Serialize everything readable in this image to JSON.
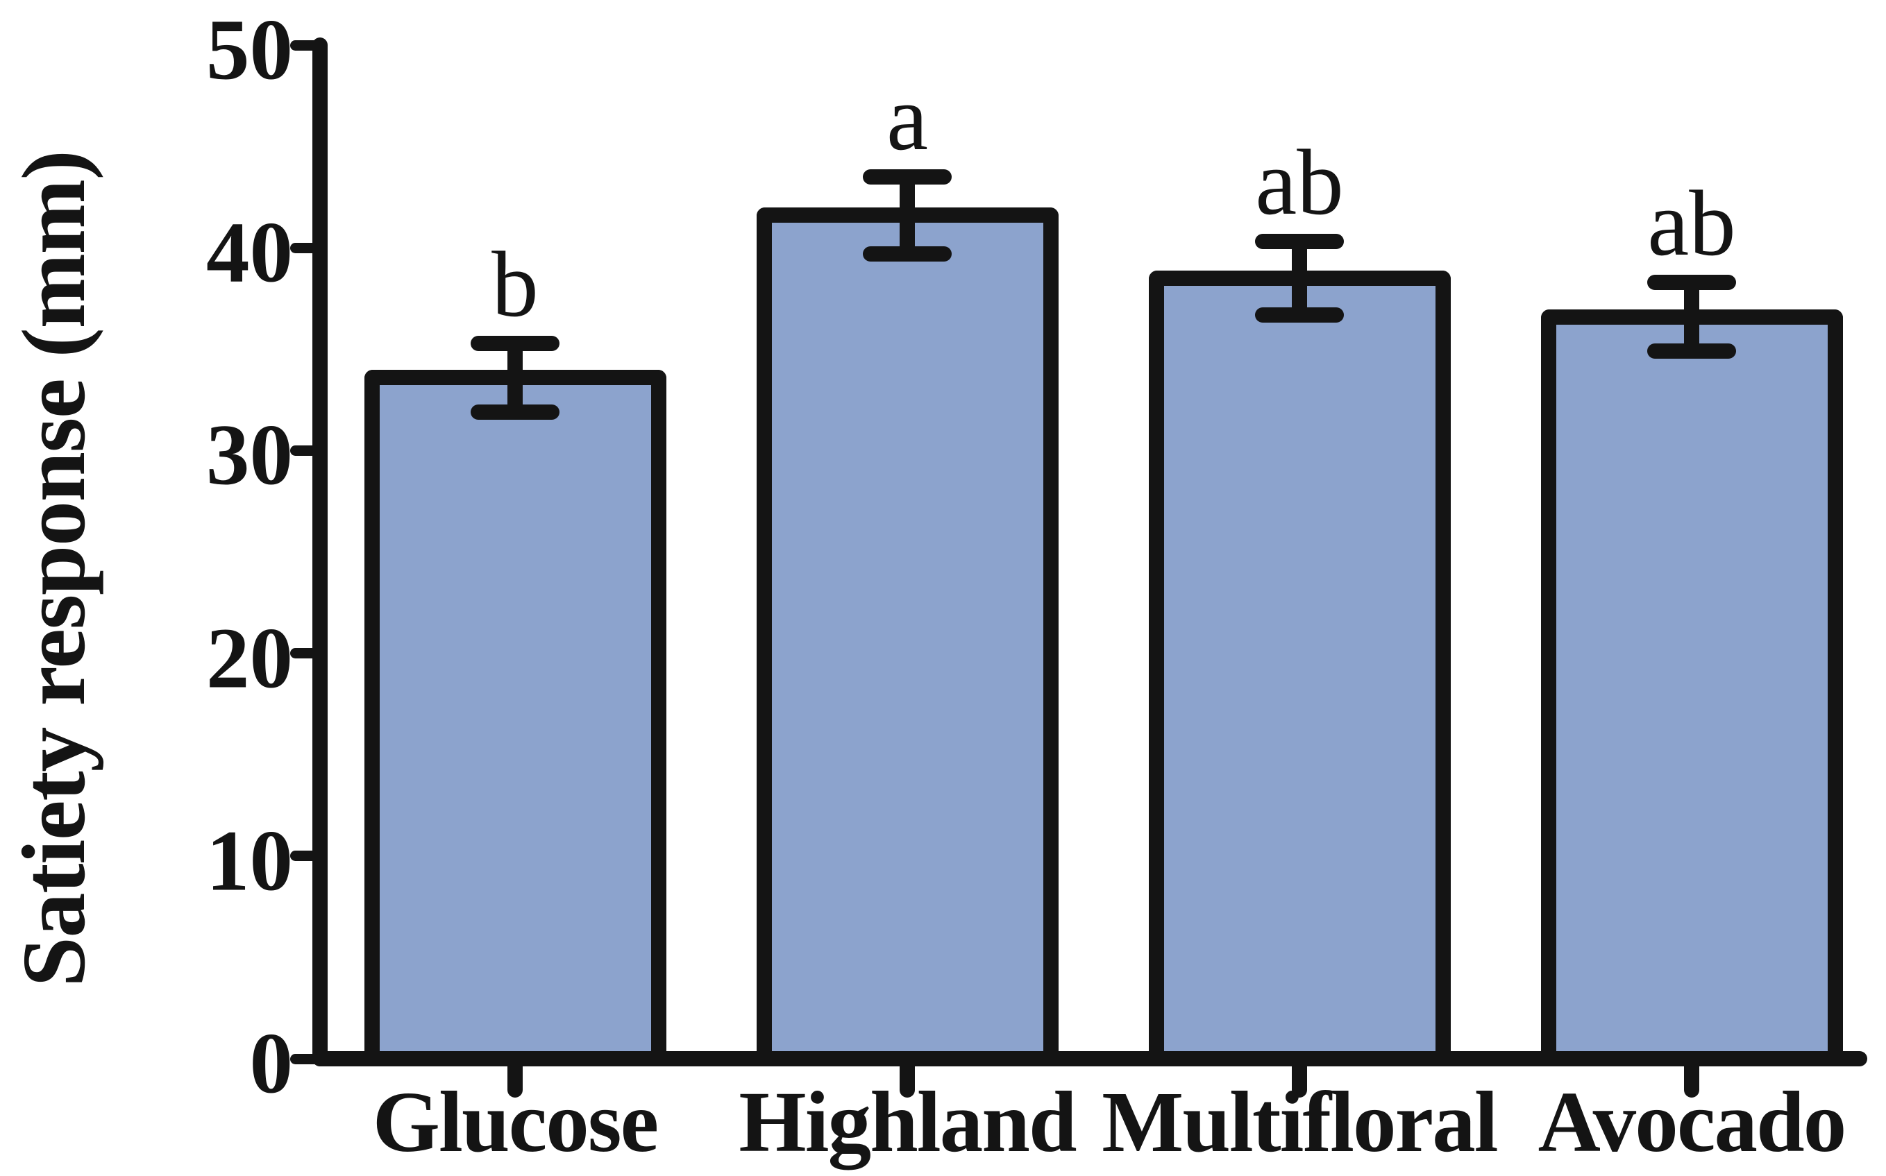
{
  "chart_data": {
    "type": "bar",
    "title": "",
    "xlabel": "",
    "ylabel": "Satiety response (mm)",
    "categories": [
      "Glucose",
      "Highland",
      "Multifloral",
      "Avocado"
    ],
    "values": [
      33.6,
      41.6,
      38.5,
      36.6
    ],
    "error": [
      1.7,
      1.9,
      1.8,
      1.7
    ],
    "sig_letters": [
      "b",
      "a",
      "ab",
      "ab"
    ],
    "ylim": [
      0,
      50
    ],
    "yticks": [
      0,
      10,
      20,
      30,
      40,
      50
    ],
    "grid": false,
    "legend": null,
    "bar_fill_color": "#8ca3cd",
    "stroke_color": "#141414"
  }
}
